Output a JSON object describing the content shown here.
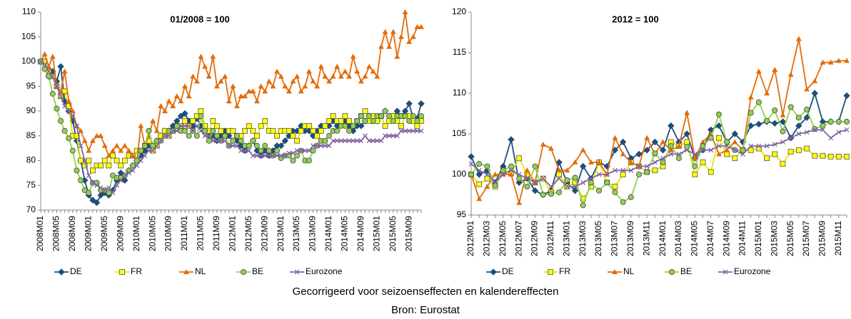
{
  "chart_data": [
    {
      "type": "line",
      "title": "01/2008 = 100",
      "categories": [
        "2008M01",
        null,
        null,
        null,
        "2008M05",
        null,
        null,
        null,
        "2008M09",
        null,
        null,
        null,
        "2009M01",
        null,
        null,
        null,
        "2009M05",
        null,
        null,
        null,
        "2009M09",
        null,
        null,
        null,
        "2010M01",
        null,
        null,
        null,
        "2010M05",
        null,
        null,
        null,
        "2010M09",
        null,
        null,
        null,
        "2011M01",
        null,
        null,
        null,
        "2011M05",
        null,
        null,
        null,
        "2011M09",
        null,
        null,
        null,
        "2012M01",
        null,
        null,
        null,
        "2012M05",
        null,
        null,
        null,
        "2012M09",
        null,
        null,
        null,
        "2013M01",
        null,
        null,
        null,
        "2013M05",
        null,
        null,
        null,
        "2013M09",
        null,
        null,
        null,
        "2014M01",
        null,
        null,
        null,
        "2014M05",
        null,
        null,
        null,
        "2014M09",
        null,
        null,
        null,
        "2015M01",
        null,
        null,
        null,
        "2015M05",
        null,
        null,
        null,
        "2015M09",
        null,
        null,
        null
      ],
      "ylim": [
        70,
        110
      ],
      "yticks": [
        70,
        75,
        80,
        85,
        90,
        95,
        100,
        105,
        110
      ],
      "series": [
        {
          "name": "DE",
          "color": "#1f4e79",
          "marker": "diamond",
          "values": [
            100,
            100,
            97,
            98,
            96,
            99,
            92,
            90,
            88,
            84,
            80,
            76,
            73,
            72,
            71.5,
            73,
            73.5,
            73,
            74,
            76,
            77.5,
            76,
            78,
            79,
            80,
            81,
            82,
            83,
            83,
            84,
            85,
            86,
            86,
            87,
            88,
            89,
            89.5,
            88,
            87,
            88.5,
            87,
            86,
            85,
            85,
            84,
            85,
            86,
            85,
            84,
            84,
            83,
            82,
            83,
            84,
            82,
            81,
            82,
            81,
            82,
            83,
            83,
            84,
            85,
            86,
            86,
            87,
            86,
            86,
            85,
            86,
            87,
            87,
            87,
            88,
            87,
            88,
            88,
            87,
            86,
            87,
            87,
            88,
            89,
            88,
            88,
            89,
            90,
            89,
            89,
            90,
            89,
            90,
            91.5,
            88.5,
            88.5,
            91.5
          ]
        },
        {
          "name": "FR",
          "color": "#ffff00",
          "marker": "square",
          "values": [
            100,
            100,
            98,
            97,
            95,
            93,
            94,
            91,
            85,
            85,
            80,
            79,
            80,
            78,
            79,
            79,
            80,
            79,
            81,
            80,
            79,
            80,
            81,
            81,
            82,
            82,
            83,
            84,
            82,
            83,
            85,
            86,
            85,
            86,
            87,
            87,
            88,
            87,
            88,
            89,
            90,
            87,
            86,
            88,
            87,
            86,
            85,
            86,
            86,
            85,
            85,
            86,
            87,
            86,
            85,
            87,
            88,
            86,
            86,
            85,
            86,
            86,
            86,
            85,
            84,
            86,
            87,
            87,
            86,
            85,
            86,
            87,
            88,
            89,
            88,
            88,
            89,
            88,
            87,
            88,
            89,
            90,
            88,
            89,
            88,
            89,
            87,
            88,
            89,
            88,
            87,
            89,
            89,
            88,
            87,
            88
          ]
        },
        {
          "name": "NL",
          "color": "#e36c0a",
          "marker": "triangle",
          "values": [
            100,
            101.5,
            99,
            101,
            95,
            94,
            98,
            92,
            90,
            87,
            86,
            84,
            82,
            84,
            85,
            85,
            83,
            81,
            82,
            83,
            82,
            83,
            82,
            81,
            80,
            87,
            83,
            85,
            88,
            86,
            91,
            90,
            92,
            91,
            93,
            92,
            95,
            93,
            97,
            96,
            101,
            99,
            97,
            101,
            95,
            96,
            97,
            92,
            95,
            91,
            93,
            93,
            94,
            94,
            92,
            95,
            94,
            96,
            95,
            98,
            97,
            95,
            94,
            96,
            97,
            94,
            95,
            98,
            96,
            95,
            99,
            97,
            96,
            97,
            99,
            97,
            98,
            97,
            101,
            98,
            96,
            97,
            99,
            98,
            97,
            103,
            106,
            103,
            106,
            101,
            105,
            110,
            104,
            105,
            107,
            107
          ]
        },
        {
          "name": "BE",
          "color": "#92d050",
          "marker": "circle",
          "values": [
            100,
            98.5,
            97,
            93.5,
            90.5,
            88,
            86,
            84.5,
            82,
            78,
            76,
            74,
            73.5,
            75.5,
            75.5,
            74,
            74,
            73.5,
            77,
            76.5,
            76.5,
            77,
            78,
            79,
            80,
            82,
            83,
            86,
            83,
            84,
            84,
            85,
            86,
            86,
            87,
            86,
            86,
            85,
            86,
            85,
            89,
            86,
            84,
            86,
            85,
            84,
            85,
            83,
            84,
            85,
            84,
            83,
            83,
            84,
            83,
            82,
            83,
            82,
            81,
            82,
            80.5,
            81,
            81,
            80,
            81,
            82,
            80,
            80,
            82,
            83,
            84,
            84,
            85,
            86,
            86,
            87,
            87,
            86,
            87,
            88,
            89,
            88,
            89,
            88,
            89,
            89,
            90,
            89,
            88,
            89,
            89,
            89,
            88,
            89,
            88,
            89
          ]
        },
        {
          "name": "Eurozone",
          "color": "#8064a2",
          "marker": "cross",
          "values": [
            100,
            99.5,
            98,
            97,
            95,
            93,
            91,
            90,
            89,
            87,
            83,
            80,
            77,
            75.5,
            75,
            74.5,
            74,
            74.5,
            73.5,
            75,
            76,
            77,
            77.5,
            78,
            79,
            80,
            81,
            82,
            82,
            83,
            84,
            85,
            85,
            86,
            86,
            87,
            87,
            87,
            86,
            87,
            86,
            85,
            85,
            84,
            84,
            84,
            84,
            83,
            83,
            83,
            82,
            82,
            82,
            81,
            81,
            81,
            81,
            81,
            81,
            81,
            81,
            81,
            81.5,
            81.5,
            82,
            82,
            82,
            82,
            83,
            83,
            83,
            83,
            83,
            84,
            84,
            84,
            84,
            84,
            84,
            84,
            84,
            85,
            84,
            84,
            84,
            84,
            85,
            85,
            85,
            85,
            86,
            86,
            86,
            86,
            86,
            86
          ]
        }
      ]
    },
    {
      "type": "line",
      "title": "2012 = 100",
      "categories": [
        "2012M01",
        null,
        "2012M03",
        null,
        "2012M05",
        null,
        "2012M07",
        null,
        "2012M09",
        null,
        "2012M11",
        null,
        "2013M01",
        null,
        "2013M03",
        null,
        "2013M05",
        null,
        "2013M07",
        null,
        "2013M09",
        null,
        "2013M11",
        null,
        "2014M01",
        null,
        "2014M03",
        null,
        "2014M05",
        null,
        "2014M07",
        null,
        "2014M09",
        null,
        "2014M11",
        null,
        "2015M01",
        null,
        "2015M03",
        null,
        "2015M05",
        null,
        "2015M07",
        null,
        "2015M09",
        null,
        "2015M11",
        null
      ],
      "ylim": [
        95,
        120
      ],
      "yticks": [
        95,
        100,
        105,
        110,
        115,
        120
      ],
      "series": [
        {
          "name": "DE",
          "color": "#1f4e79",
          "marker": "diamond",
          "values": [
            102.2,
            100,
            100.5,
            99,
            101,
            104.3,
            99,
            99.5,
            98,
            97.5,
            98,
            101.5,
            99,
            98,
            101,
            99.5,
            101.5,
            101,
            103,
            104,
            102,
            102.5,
            103,
            104,
            103,
            106,
            104,
            105,
            102,
            103,
            105.5,
            106,
            104,
            105,
            104,
            106,
            106.2,
            106.5,
            106.3,
            106.5,
            104.5,
            106,
            107,
            110,
            106.5,
            106.5,
            106.5,
            109.7
          ]
        },
        {
          "name": "FR",
          "color": "#ffff00",
          "marker": "square",
          "values": [
            100,
            98.8,
            99.5,
            98.5,
            100.5,
            100.2,
            102,
            100,
            99,
            99.5,
            97.8,
            100,
            98.5,
            99,
            97,
            98.5,
            101.5,
            99,
            98.5,
            100,
            101.5,
            101,
            100.3,
            100.5,
            101,
            104,
            103.5,
            104,
            100,
            101.5,
            100.3,
            104.5,
            102.5,
            102,
            103,
            103,
            103.2,
            102,
            102.5,
            101.3,
            102.8,
            103,
            103.2,
            102.3,
            102.3,
            102.2,
            102.2,
            102.2
          ]
        },
        {
          "name": "NL",
          "color": "#e36c0a",
          "marker": "triangle",
          "values": [
            100,
            97,
            98.5,
            100,
            100,
            100,
            96.5,
            100.5,
            99,
            103.7,
            103.2,
            100.5,
            100.5,
            101.5,
            103,
            101.5,
            101.5,
            100,
            104.5,
            102.5,
            101.5,
            101,
            104.5,
            102.5,
            104,
            103,
            103.5,
            107.6,
            102,
            104,
            105,
            102.5,
            103,
            104,
            103,
            109.5,
            112.7,
            110,
            112.9,
            107.3,
            112.3,
            116.7,
            110.5,
            111.5,
            113.8,
            113.8,
            114,
            114
          ]
        },
        {
          "name": "BE",
          "color": "#92d050",
          "marker": "circle",
          "values": [
            100,
            101.3,
            101,
            98.7,
            100.5,
            101,
            99.5,
            98.5,
            101,
            97.5,
            97.6,
            97.8,
            99.3,
            99.6,
            96.2,
            99,
            98,
            99,
            97.8,
            96.6,
            97.2,
            100,
            100.3,
            102.6,
            101.5,
            103.5,
            102,
            103.4,
            101,
            103.5,
            104.5,
            107.4,
            104,
            103,
            103,
            107.6,
            108.9,
            106.6,
            107.9,
            105.3,
            108.3,
            107,
            108,
            105.6,
            106,
            106.5,
            106.5,
            106.5
          ]
        },
        {
          "name": "Eurozone",
          "color": "#8064a2",
          "marker": "cross",
          "values": [
            101.3,
            100.5,
            100,
            99,
            100,
            100.5,
            100,
            99.5,
            99,
            99.5,
            98.5,
            99.5,
            98.5,
            98.5,
            99,
            99.5,
            100,
            100,
            100.5,
            100.5,
            100.5,
            101,
            101,
            101.5,
            102,
            102.5,
            102.5,
            103,
            102.5,
            103,
            103,
            103.5,
            103.5,
            103,
            102.5,
            103.5,
            103.5,
            103.5,
            103.7,
            104,
            104.5,
            105,
            105.2,
            105.5,
            105.5,
            104.5,
            105.2,
            105.5
          ]
        }
      ]
    }
  ],
  "footer": [
    "Gecorrigeerd voor seizoenseffecten en kalendereffecten",
    "Bron: Eurostat"
  ]
}
